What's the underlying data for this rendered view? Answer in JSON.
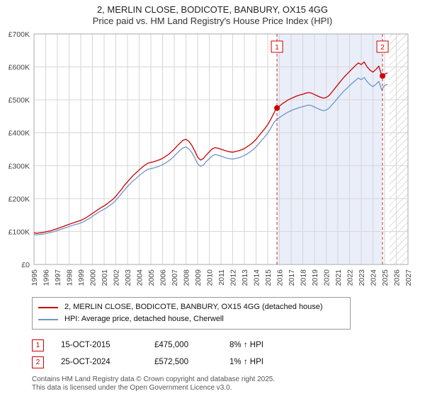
{
  "header": {
    "title": "2, MERLIN CLOSE, BODICOTE, BANBURY, OX15 4GG",
    "subtitle": "Price paid vs. HM Land Registry's House Price Index (HPI)"
  },
  "chart_data": {
    "type": "line",
    "title": "2, MERLIN CLOSE, BODICOTE, BANBURY, OX15 4GG — Price paid vs. HPI",
    "x_start": 1995.0,
    "x_step": 0.25,
    "x_axis": {
      "min": 1995,
      "max": 2027,
      "tick_years": [
        1995,
        1996,
        1997,
        1998,
        1999,
        2000,
        2001,
        2002,
        2003,
        2004,
        2005,
        2006,
        2007,
        2008,
        2009,
        2010,
        2011,
        2012,
        2013,
        2014,
        2015,
        2016,
        2017,
        2018,
        2019,
        2020,
        2021,
        2022,
        2023,
        2024,
        2025,
        2026,
        2027
      ]
    },
    "y_axis": {
      "min": 0,
      "max": 700000,
      "tick_step": 100000,
      "tick_labels": [
        "£0",
        "£100K",
        "£200K",
        "£300K",
        "£400K",
        "£500K",
        "£600K",
        "£700K"
      ]
    },
    "series": [
      {
        "name": "2, MERLIN CLOSE, BODICOTE, BANBURY, OX15 4GG (detached house)",
        "color": "#cc0000",
        "values": [
          96000,
          95000,
          96000,
          97000,
          99000,
          101000,
          103000,
          106000,
          109000,
          112000,
          115000,
          119000,
          122000,
          125000,
          128000,
          131000,
          134000,
          138000,
          143000,
          149000,
          155000,
          161000,
          167000,
          173000,
          178000,
          184000,
          191000,
          198000,
          207000,
          218000,
          229000,
          241000,
          251000,
          261000,
          271000,
          279000,
          287000,
          295000,
          302000,
          308000,
          310000,
          312000,
          315000,
          318000,
          322000,
          328000,
          334000,
          342000,
          350000,
          360000,
          369000,
          377000,
          380000,
          374000,
          362000,
          345000,
          326000,
          317000,
          322000,
          333000,
          342000,
          351000,
          355000,
          353000,
          350000,
          347000,
          344000,
          342000,
          341000,
          343000,
          345000,
          348000,
          352000,
          358000,
          364000,
          371000,
          380000,
          391000,
          402000,
          413000,
          425000,
          440000,
          458000,
          475000,
          481000,
          488000,
          494000,
          500000,
          504000,
          508000,
          512000,
          515000,
          517000,
          520000,
          522000,
          520000,
          516000,
          512000,
          508000,
          505000,
          507000,
          513000,
          524000,
          535000,
          546000,
          557000,
          568000,
          577000,
          586000,
          595000,
          604000,
          612000,
          607000,
          615000,
          600000,
          590000,
          584000,
          592000,
          602000,
          573000,
          578000,
          582000
        ]
      },
      {
        "name": "HPI: Average price, detached house, Cherwell",
        "color": "#6f94c9",
        "values": [
          91000,
          90000,
          91000,
          92000,
          94000,
          96000,
          98000,
          100000,
          103000,
          106000,
          109000,
          112000,
          115000,
          118000,
          121000,
          123000,
          126000,
          130000,
          135000,
          140000,
          146000,
          152000,
          158000,
          163000,
          168000,
          173000,
          180000,
          186000,
          195000,
          205000,
          216000,
          227000,
          237000,
          246000,
          255000,
          262000,
          270000,
          277000,
          284000,
          289000,
          291000,
          293000,
          296000,
          299000,
          303000,
          308000,
          314000,
          321000,
          329000,
          338000,
          347000,
          354000,
          357000,
          351000,
          340000,
          324000,
          306000,
          298000,
          302000,
          313000,
          321000,
          330000,
          334000,
          332000,
          329000,
          326000,
          323000,
          321000,
          320000,
          322000,
          324000,
          327000,
          331000,
          336000,
          342000,
          349000,
          357000,
          367000,
          378000,
          388000,
          399000,
          413000,
          430000,
          440000,
          446000,
          452000,
          458000,
          463000,
          467000,
          471000,
          474000,
          477000,
          479000,
          482000,
          484000,
          482000,
          478000,
          474000,
          470000,
          467000,
          469000,
          475000,
          485000,
          495000,
          506000,
          516000,
          526000,
          534000,
          543000,
          551000,
          559000,
          566000,
          561000,
          568000,
          555000,
          546000,
          540000,
          547000,
          556000,
          530000,
          544000,
          547000
        ]
      }
    ],
    "sales": [
      {
        "label": "1",
        "x": 2015.79,
        "price": 475000
      },
      {
        "label": "2",
        "x": 2024.82,
        "price": 572500
      }
    ],
    "shaded_region": {
      "from": 2015.79,
      "to": 2024.82
    },
    "hatched_region": {
      "from": 2025.4,
      "to": 2027
    },
    "colors": {
      "grid": "#d6d6d6",
      "border": "#aaaaaa",
      "shade": "#e9eef9",
      "hatch_line": "#c4c4c4",
      "sale_line": "#cc3333",
      "sale_dot": "#cc0000"
    },
    "legend_position": "bottom",
    "grid": true
  },
  "legend": {
    "items": [
      {
        "label": "2, MERLIN CLOSE, BODICOTE, BANBURY, OX15 4GG (detached house)",
        "color": "#cc0000"
      },
      {
        "label": "HPI: Average price, detached house, Cherwell",
        "color": "#6f94c9"
      }
    ]
  },
  "transactions": [
    {
      "num": "1",
      "date": "15-OCT-2015",
      "price": "£475,000",
      "hpi": "8% ↑ HPI"
    },
    {
      "num": "2",
      "date": "25-OCT-2024",
      "price": "£572,500",
      "hpi": "1% ↑ HPI"
    }
  ],
  "footer": {
    "line1": "Contains HM Land Registry data © Crown copyright and database right 2025.",
    "line2": "This data is licensed under the Open Government Licence v3.0."
  }
}
